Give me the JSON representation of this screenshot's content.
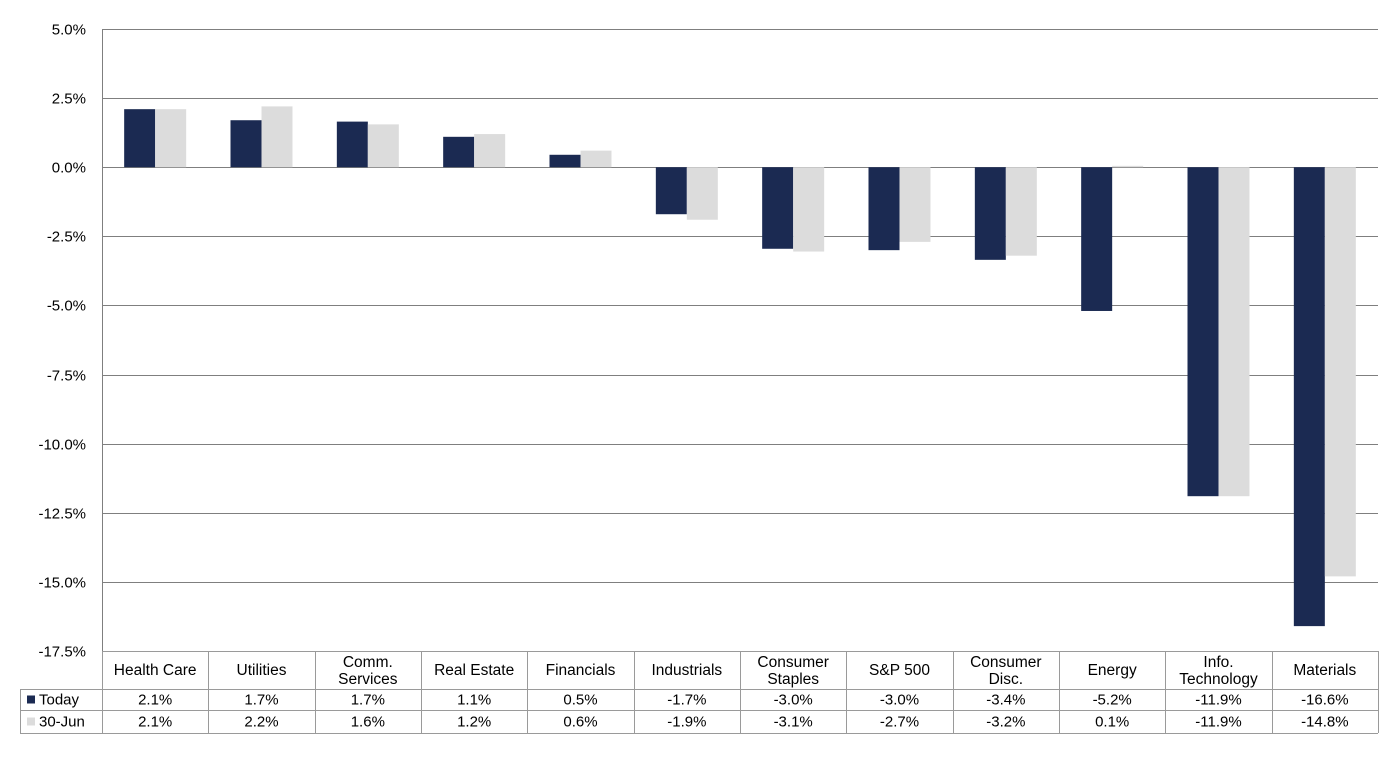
{
  "colors": {
    "today": "#1b2a52",
    "jun30": "#dcdcdc",
    "grid": "#7f7f7f",
    "table_border": "#9a9a9a"
  },
  "chart_data": {
    "type": "bar",
    "categories": [
      [
        "Health Care"
      ],
      [
        "Utilities"
      ],
      [
        "Comm.",
        "Services"
      ],
      [
        "Real Estate"
      ],
      [
        "Financials"
      ],
      [
        "Industrials"
      ],
      [
        "Consumer",
        "Staples"
      ],
      [
        "S&P 500"
      ],
      [
        "Consumer",
        "Disc."
      ],
      [
        "Energy"
      ],
      [
        "Info.",
        "Technology"
      ],
      [
        "Materials"
      ]
    ],
    "series": [
      {
        "name": "Today",
        "values": [
          2.1,
          1.7,
          1.65,
          1.1,
          0.45,
          -1.7,
          -2.95,
          -3.0,
          -3.35,
          -5.2,
          -11.9,
          -16.6
        ],
        "labels": [
          "2.1%",
          "1.7%",
          "1.7%",
          "1.1%",
          "0.5%",
          "-1.7%",
          "-3.0%",
          "-3.0%",
          "-3.4%",
          "-5.2%",
          "-11.9%",
          "-16.6%"
        ],
        "color_key": "today"
      },
      {
        "name": "30-Jun",
        "values": [
          2.1,
          2.2,
          1.55,
          1.2,
          0.6,
          -1.9,
          -3.05,
          -2.7,
          -3.2,
          0.05,
          -11.9,
          -14.8
        ],
        "labels": [
          "2.1%",
          "2.2%",
          "1.6%",
          "1.2%",
          "0.6%",
          "-1.9%",
          "-3.1%",
          "-2.7%",
          "-3.2%",
          "0.1%",
          "-11.9%",
          "-14.8%"
        ],
        "color_key": "jun30"
      }
    ],
    "ylim": [
      -17.5,
      5.0
    ],
    "yticks": [
      5.0,
      2.5,
      0.0,
      -2.5,
      -5.0,
      -7.5,
      -10.0,
      -12.5,
      -15.0,
      -17.5
    ],
    "ytick_labels": [
      "5.0%",
      "2.5%",
      "0.0%",
      "-2.5%",
      "-5.0%",
      "-7.5%",
      "-10.0%",
      "-12.5%",
      "-15.0%",
      "-17.5%"
    ],
    "grid": true,
    "legend_placement": "data-table"
  }
}
